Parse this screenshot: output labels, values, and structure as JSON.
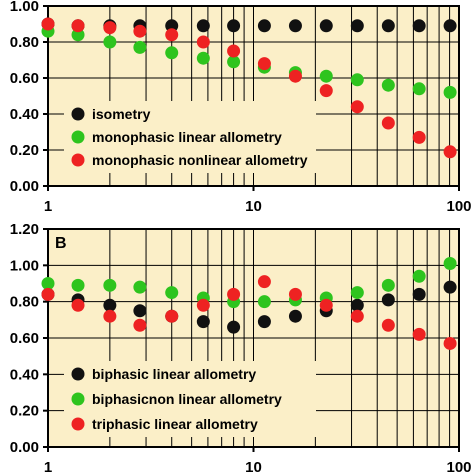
{
  "chart_data": [
    {
      "type": "scatter",
      "panel_label": "",
      "x_scale": "log",
      "xlim": [
        1,
        100
      ],
      "ylim": [
        0.0,
        1.0
      ],
      "x_tick_labels": [
        "1",
        "10",
        "100"
      ],
      "y_tick_labels": [
        "0.00",
        "0.20",
        "0.40",
        "0.60",
        "0.80",
        "1.00"
      ],
      "background": "#fbefc8",
      "grid": true,
      "legend_position": "lower-left",
      "series": [
        {
          "name": "isometry",
          "color": "#111111",
          "points": [
            [
              1,
              0.9
            ],
            [
              1.4,
              0.89
            ],
            [
              2,
              0.89
            ],
            [
              2.8,
              0.89
            ],
            [
              4,
              0.89
            ],
            [
              5.7,
              0.89
            ],
            [
              8,
              0.89
            ],
            [
              11.3,
              0.89
            ],
            [
              16,
              0.89
            ],
            [
              22.6,
              0.89
            ],
            [
              32,
              0.89
            ],
            [
              45.3,
              0.89
            ],
            [
              64,
              0.89
            ],
            [
              90.5,
              0.89
            ]
          ]
        },
        {
          "name": "monophasic linear allometry",
          "color": "#2ec41e",
          "points": [
            [
              1,
              0.86
            ],
            [
              1.4,
              0.84
            ],
            [
              2,
              0.8
            ],
            [
              2.8,
              0.77
            ],
            [
              4,
              0.74
            ],
            [
              5.7,
              0.71
            ],
            [
              8,
              0.69
            ],
            [
              11.3,
              0.66
            ],
            [
              16,
              0.63
            ],
            [
              22.6,
              0.61
            ],
            [
              32,
              0.59
            ],
            [
              45.3,
              0.56
            ],
            [
              64,
              0.54
            ],
            [
              90.5,
              0.52
            ]
          ]
        },
        {
          "name": "monophasic nonlinear allometry",
          "color": "#ee2222",
          "points": [
            [
              1,
              0.9
            ],
            [
              1.4,
              0.89
            ],
            [
              2,
              0.88
            ],
            [
              2.8,
              0.86
            ],
            [
              4,
              0.84
            ],
            [
              5.7,
              0.8
            ],
            [
              8,
              0.75
            ],
            [
              11.3,
              0.68
            ],
            [
              16,
              0.61
            ],
            [
              22.6,
              0.53
            ],
            [
              32,
              0.44
            ],
            [
              45.3,
              0.35
            ],
            [
              64,
              0.27
            ],
            [
              90.5,
              0.19
            ]
          ]
        }
      ]
    },
    {
      "type": "scatter",
      "panel_label": "B",
      "x_scale": "log",
      "xlim": [
        1,
        100
      ],
      "ylim": [
        0.0,
        1.2
      ],
      "x_tick_labels": [
        "1",
        "10",
        "100"
      ],
      "y_tick_labels": [
        "0.00",
        "0.20",
        "0.40",
        "0.60",
        "0.80",
        "1.00",
        "1.20"
      ],
      "background": "#fbefc8",
      "grid": true,
      "legend_position": "lower-left",
      "series": [
        {
          "name": "biphasic linear allometry",
          "color": "#111111",
          "points": [
            [
              1,
              0.84
            ],
            [
              1.4,
              0.81
            ],
            [
              2,
              0.78
            ],
            [
              2.8,
              0.75
            ],
            [
              4,
              0.72
            ],
            [
              5.7,
              0.69
            ],
            [
              8,
              0.66
            ],
            [
              11.3,
              0.69
            ],
            [
              16,
              0.72
            ],
            [
              22.6,
              0.75
            ],
            [
              32,
              0.78
            ],
            [
              45.3,
              0.81
            ],
            [
              64,
              0.84
            ],
            [
              90.5,
              0.88
            ]
          ]
        },
        {
          "name": "biphasicnon linear allometry",
          "color": "#2ec41e",
          "points": [
            [
              1,
              0.9
            ],
            [
              1.4,
              0.89
            ],
            [
              2,
              0.89
            ],
            [
              2.8,
              0.88
            ],
            [
              4,
              0.85
            ],
            [
              5.7,
              0.82
            ],
            [
              8,
              0.8
            ],
            [
              11.3,
              0.8
            ],
            [
              16,
              0.81
            ],
            [
              22.6,
              0.82
            ],
            [
              32,
              0.85
            ],
            [
              45.3,
              0.89
            ],
            [
              64,
              0.94
            ],
            [
              90.5,
              1.01
            ]
          ]
        },
        {
          "name": "triphasic linear allometry",
          "color": "#ee2222",
          "points": [
            [
              1,
              0.84
            ],
            [
              1.4,
              0.78
            ],
            [
              2,
              0.72
            ],
            [
              2.8,
              0.67
            ],
            [
              4,
              0.72
            ],
            [
              5.7,
              0.78
            ],
            [
              8,
              0.84
            ],
            [
              11.3,
              0.91
            ],
            [
              16,
              0.84
            ],
            [
              22.6,
              0.78
            ],
            [
              32,
              0.72
            ],
            [
              45.3,
              0.67
            ],
            [
              64,
              0.62
            ],
            [
              90.5,
              0.57
            ]
          ]
        }
      ]
    }
  ]
}
